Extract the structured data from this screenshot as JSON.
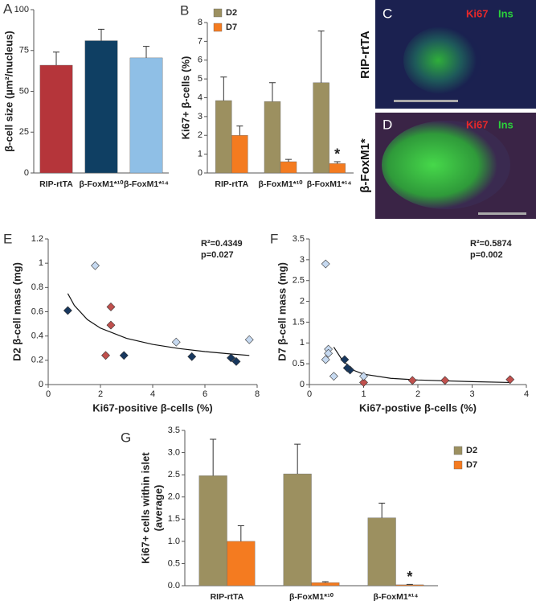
{
  "chart_data": [
    {
      "type": "bar",
      "label": "A",
      "y_label": "β-cell size (µm²/nucleus)",
      "categories": [
        "RIP-rtTA",
        "β-FoxM1*¹⁰",
        "β-FoxM1*¹⁴"
      ],
      "values": [
        66,
        81,
        70.5
      ],
      "errors": [
        8,
        7,
        7
      ],
      "colors": [
        "#b5353a",
        "#0f3f63",
        "#8fbfe6"
      ],
      "ylim": [
        0,
        100
      ],
      "yticks": [
        0,
        25,
        50,
        75,
        100
      ]
    },
    {
      "type": "bar",
      "label": "B",
      "y_label": "Ki67+ β-cells (%)",
      "categories": [
        "RIP-rtTA",
        "β-FoxM1*¹⁰",
        "β-FoxM1*¹⁴"
      ],
      "series": [
        {
          "name": "D2",
          "color": "#9c9060",
          "values": [
            3.85,
            3.8,
            4.8
          ],
          "errors": [
            1.25,
            1.0,
            2.75
          ]
        },
        {
          "name": "D7",
          "color": "#f47b20",
          "values": [
            2.0,
            0.6,
            0.5
          ],
          "errors": [
            0.5,
            0.12,
            0.1
          ]
        }
      ],
      "ylim": [
        0,
        8
      ],
      "yticks": [
        0,
        1,
        2,
        3,
        4,
        5,
        6,
        7,
        8
      ],
      "annotations": [
        "*"
      ],
      "legend": "upper left"
    },
    {
      "type": "scatter",
      "label": "E",
      "y_label": "D2 β-cell mass (mg)",
      "x_label": "Ki67-positive β-cells (%)",
      "series": [
        {
          "color": "#c0504d",
          "x": [
            2.4,
            2.4,
            2.2
          ],
          "values": [
            0.64,
            0.49,
            0.24
          ]
        },
        {
          "color": "#c6d9f0",
          "x": [
            1.8,
            4.9,
            7.7
          ],
          "values": [
            0.98,
            0.35,
            0.37
          ]
        },
        {
          "color": "#17375e",
          "x": [
            0.75,
            2.9,
            5.5,
            7.0,
            7.2
          ],
          "values": [
            0.61,
            0.24,
            0.23,
            0.22,
            0.19
          ]
        }
      ],
      "trend": {
        "x": [
          0.75,
          1,
          1.5,
          2,
          3,
          4,
          5,
          6,
          7,
          7.7
        ],
        "values": [
          0.75,
          0.652,
          0.535,
          0.465,
          0.381,
          0.331,
          0.297,
          0.272,
          0.252,
          0.24
        ]
      },
      "xlim": [
        0,
        8
      ],
      "xticks": [
        0,
        2,
        4,
        6,
        8
      ],
      "ylim": [
        0,
        1.2
      ],
      "yticks": [
        0,
        0.2,
        0.4,
        0.6,
        0.8,
        1,
        1.2
      ],
      "annotations": [
        "R²=0.4349",
        "p=0.027"
      ]
    },
    {
      "type": "scatter",
      "label": "F",
      "y_label": "D7 β-cell mass (mg)",
      "x_label": "Ki67-postive β-cells (%)",
      "series": [
        {
          "color": "#c0504d",
          "x": [
            1.0,
            1.9,
            2.5,
            3.7
          ],
          "values": [
            0.05,
            0.1,
            0.1,
            0.12
          ]
        },
        {
          "color": "#c6d9f0",
          "x": [
            0.3,
            0.35,
            0.3,
            0.45,
            1.0,
            0.35
          ],
          "values": [
            2.9,
            0.85,
            0.6,
            0.2,
            0.2,
            0.75
          ]
        },
        {
          "color": "#17375e",
          "x": [
            0.65,
            0.75,
            0.7
          ],
          "values": [
            0.6,
            0.35,
            0.4
          ]
        }
      ],
      "trend": {
        "x": [
          0.45,
          0.6,
          0.8,
          1,
          1.5,
          2,
          3,
          3.7
        ],
        "values": [
          0.9,
          0.6,
          0.35,
          0.25,
          0.15,
          0.11,
          0.07,
          0.05
        ]
      },
      "xlim": [
        0,
        4
      ],
      "xticks": [
        0,
        1,
        2,
        3,
        4
      ],
      "ylim": [
        0,
        3.5
      ],
      "yticks": [
        0,
        0.5,
        1,
        1.5,
        2,
        2.5,
        3,
        3.5
      ],
      "annotations": [
        "R²=0.5874",
        "p=0.002"
      ]
    },
    {
      "type": "bar",
      "label": "G",
      "y_label": [
        "Ki67+ cells within islet",
        "(average)"
      ],
      "categories": [
        "RIP-rtTA",
        "β-FoxM1*¹⁰",
        "β-FoxM1*¹⁴"
      ],
      "series": [
        {
          "name": "D2",
          "color": "#9c9060",
          "values": [
            2.48,
            2.52,
            1.53
          ],
          "errors": [
            0.82,
            0.67,
            0.33
          ]
        },
        {
          "name": "D7",
          "color": "#f47b20",
          "values": [
            1.0,
            0.07,
            0.02
          ],
          "errors": [
            0.35,
            0.02,
            0.01
          ]
        }
      ],
      "ylim": [
        0,
        3.5
      ],
      "yticks": [
        {
          "value": 0,
          "label": "0.0"
        },
        0.5,
        {
          "value": 1,
          "label": "1.0"
        },
        1.5,
        {
          "value": 2,
          "label": "2.0"
        },
        2.5,
        {
          "value": 3,
          "label": "3.0"
        },
        3.5
      ],
      "annotations": [
        "*"
      ],
      "legend": "right"
    }
  ],
  "images": [
    {
      "label": "C",
      "title": "RIP-rtTA",
      "stains": [
        "Ki67",
        "Ins"
      ]
    },
    {
      "label": "D",
      "title": "β-FoxM1*",
      "stains": [
        "Ki67",
        "Ins"
      ]
    }
  ]
}
